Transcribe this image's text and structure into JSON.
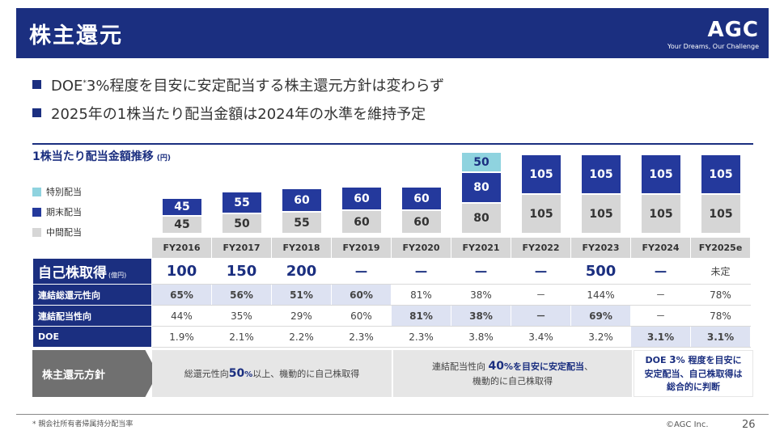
{
  "header": {
    "title": "株主還元",
    "logo": "AGC",
    "tagline": "Your Dreams, Our Challenge"
  },
  "bullets": [
    {
      "before": "DOE",
      "sup": "*",
      "after": "3%程度を目安に安定配当する株主還元方針は変わらず"
    },
    {
      "text": "2025年の1株当たり配当金額は2024年の水準を維持予定"
    }
  ],
  "chart_data": {
    "type": "bar",
    "stacked": true,
    "title": "1株当たり配当金額推移",
    "unit": "(円)",
    "categories": [
      "FY2016",
      "FY2017",
      "FY2018",
      "FY2019",
      "FY2020",
      "FY2021",
      "FY2022",
      "FY2023",
      "FY2024",
      "FY2025e"
    ],
    "series": [
      {
        "name": "中間配当",
        "color": "#d6d6d6",
        "values": [
          45,
          50,
          55,
          60,
          60,
          80,
          105,
          105,
          105,
          105
        ]
      },
      {
        "name": "期末配当",
        "color": "#24399c",
        "values": [
          45,
          55,
          60,
          60,
          60,
          80,
          105,
          105,
          105,
          105
        ]
      },
      {
        "name": "特別配当",
        "color": "#8fd3df",
        "values": [
          0,
          0,
          0,
          0,
          0,
          50,
          0,
          0,
          0,
          0
        ]
      }
    ],
    "legend": [
      "特別配当",
      "期末配当",
      "中間配当"
    ],
    "ylim": [
      0,
      215
    ]
  },
  "table": {
    "rows": [
      {
        "label": "自己株取得",
        "unit": "(億円)",
        "values": [
          "100",
          "150",
          "200",
          "－",
          "－",
          "－",
          "－",
          "500",
          "－",
          "未定"
        ]
      },
      {
        "label": "連結総還元性向",
        "values": [
          "65%",
          "56%",
          "51%",
          "60%",
          "81%",
          "38%",
          "－",
          "144%",
          "－",
          "78%"
        ]
      },
      {
        "label": "連結配当性向",
        "values": [
          "44%",
          "35%",
          "29%",
          "60%",
          "81%",
          "38%",
          "－",
          "69%",
          "－",
          "78%"
        ]
      },
      {
        "label": "DOE",
        "values": [
          "1.9%",
          "2.1%",
          "2.2%",
          "2.3%",
          "2.3%",
          "3.8%",
          "3.4%",
          "3.2%",
          "3.1%",
          "3.1%"
        ]
      }
    ]
  },
  "policy": {
    "label": "株主還元方針",
    "p1": {
      "before": "総還元性向",
      "em": "50",
      "em_small": "%",
      "after": "以上、機動的に自己株取得"
    },
    "p2": {
      "line1_before": "連結配当性向 ",
      "em": "40",
      "em_after": "%を目安に安定配当",
      "line1_after": "、",
      "line2": "機動的に自己株取得"
    },
    "p3": {
      "l1_before": "DOE ",
      "l1_num": "3",
      "l1_after": "% 程度を目安に",
      "l2": "安定配当、自己株取得は",
      "l3": "総合的に判断"
    }
  },
  "footer": {
    "footnote": "* 親会社所有者帰属持分配当率",
    "copyright": "©AGC Inc.",
    "page": "26"
  }
}
